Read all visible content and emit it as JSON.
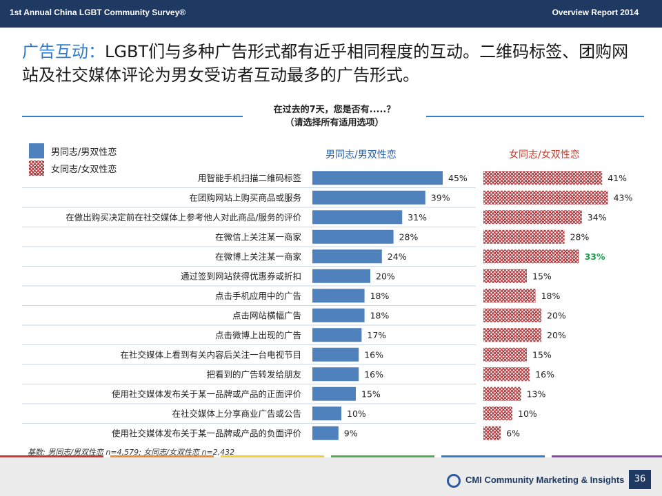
{
  "header": {
    "left_title": "1st Annual China LGBT Community Survey®",
    "right_title": "Overview Report 2014"
  },
  "headline": {
    "highlight": "广告互动：",
    "text": "LGBT们与多种广告形式都有近乎相同程度的互动。二维码标签、团购网站及社交媒体评论为男女受访者互动最多的广告形式。"
  },
  "question": {
    "line1": "在过去的7天，您是否有.....？",
    "line2": "（请选择所有适用选项）"
  },
  "legend": {
    "male": "男同志/男双性恋",
    "female": "女同志/女双性恋"
  },
  "column_headers": {
    "male": "男同志/男双性恋",
    "female": "女同志/女双性恋"
  },
  "colors": {
    "male": "#4f81bd",
    "female": "#b0393e",
    "highlight": "#16a34a",
    "accent": "#2f7dd1"
  },
  "chart_data": {
    "type": "bar",
    "orientation": "horizontal",
    "title": "在过去的7天，您是否有.....？（请选择所有适用选项）",
    "categories": [
      "用智能手机扫描二维码标签",
      "在团购网站上购买商品或服务",
      "在做出购买决定前在社交媒体上参考他人对此商品/服务的评价",
      "在微信上关注某一商家",
      "在微博上关注某一商家",
      "通过签到网站获得优惠券或折扣",
      "点击手机应用中的广告",
      "点击网站横幅广告",
      "点击微博上出现的广告",
      "在社交媒体上看到有关内容后关注一台电视节目",
      "把看到的广告转发给朋友",
      "使用社交媒体发布关于某一品牌或产品的正面评价",
      "在社交媒体上分享商业广告或公告",
      "使用社交媒体发布关于某一品牌或产品的负面评价"
    ],
    "series": [
      {
        "name": "男同志/男双性恋",
        "values": [
          45,
          39,
          31,
          28,
          24,
          20,
          18,
          18,
          17,
          16,
          16,
          15,
          10,
          9
        ]
      },
      {
        "name": "女同志/女双性恋",
        "values": [
          41,
          43,
          34,
          28,
          33,
          15,
          18,
          20,
          20,
          15,
          16,
          13,
          10,
          6
        ]
      }
    ],
    "highlighted_labels": [
      {
        "series": 1,
        "index": 4
      }
    ],
    "value_suffix": "%",
    "xlim": [
      0,
      50
    ]
  },
  "footer": {
    "base_note": "基数:  男同志/男双性恋 n=4,579;  女同志/女双性恋 n=2,432",
    "logo_text": "CMI Community Marketing & Insights",
    "page_number": "36"
  }
}
